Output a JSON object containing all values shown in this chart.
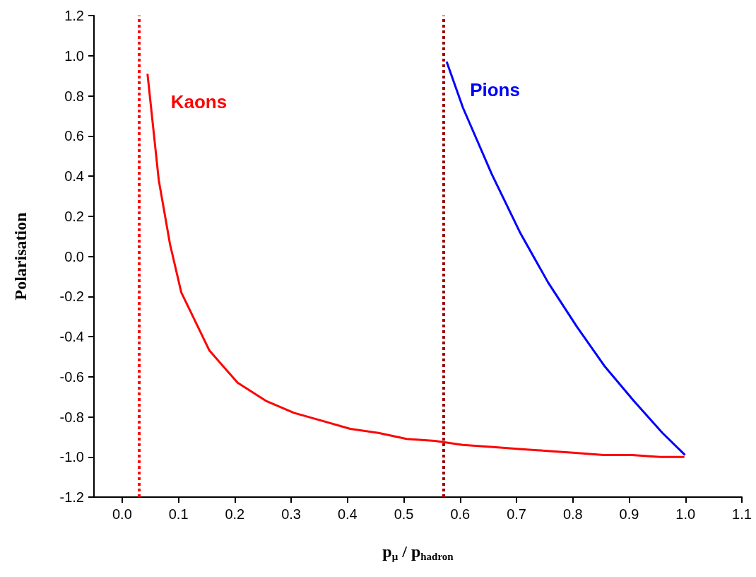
{
  "chart_data": {
    "type": "line",
    "xlabel": "p$_{μ}$ / p$_{hadron}$",
    "ylabel": "Polarisation",
    "xlim": [
      -0.05,
      1.1
    ],
    "xticks": [
      {
        "value": 0,
        "label": "0.0"
      },
      0.1,
      0.2,
      0.3,
      0.4,
      0.5,
      0.6,
      0.7,
      0.8,
      0.9,
      {
        "value": 1,
        "label": "1.0"
      },
      1.1
    ],
    "ylim": [
      -1.2,
      1.2
    ],
    "yticks": [
      -1.2,
      {
        "value": -1,
        "label": "-1.0"
      },
      -0.8,
      -0.6,
      -0.4,
      -0.2,
      {
        "value": 0,
        "label": "0.0"
      },
      0.2,
      0.4,
      0.6,
      0.8,
      {
        "value": 1,
        "label": "1.0"
      },
      1.2
    ],
    "grid": false,
    "legend": false,
    "marker": "none",
    "line_style": "solid",
    "series": [
      {
        "name": "Kaons",
        "color": "#ff0000",
        "x": [
          0.045,
          0.065,
          0.085,
          0.105,
          0.155,
          0.205,
          0.255,
          0.305,
          0.355,
          0.405,
          0.455,
          0.505,
          0.555,
          0.605,
          0.655,
          0.705,
          0.755,
          0.805,
          0.855,
          0.905,
          0.955,
          0.998
        ],
        "values": [
          0.91,
          0.38,
          0.06,
          -0.18,
          -0.47,
          -0.63,
          -0.72,
          -0.78,
          -0.82,
          -0.86,
          -0.88,
          -0.91,
          -0.92,
          -0.94,
          -0.95,
          -0.96,
          -0.97,
          -0.98,
          -0.99,
          -0.99,
          -1.0,
          -1.0
        ]
      },
      {
        "name": "Pions",
        "color": "#0000ff",
        "x": [
          0.576,
          0.605,
          0.656,
          0.706,
          0.756,
          0.807,
          0.857,
          0.908,
          0.959,
          0.999
        ],
        "values": [
          0.97,
          0.74,
          0.41,
          0.12,
          -0.13,
          -0.35,
          -0.55,
          -0.72,
          -0.88,
          -0.99
        ]
      }
    ],
    "ref_lines": [
      {
        "axis": "x",
        "value": 0.026,
        "color": "#ff0000",
        "line_style": "dotted"
      },
      {
        "axis": "x",
        "value": 0.566,
        "color": "#a00000",
        "line_style": "dotted"
      }
    ]
  }
}
